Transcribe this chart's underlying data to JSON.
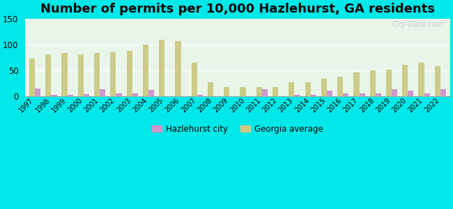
{
  "title": "Number of permits per 10,000 Hazlehurst, GA residents",
  "years": [
    1997,
    1998,
    1999,
    2000,
    2001,
    2002,
    2003,
    2004,
    2005,
    2006,
    2007,
    2008,
    2009,
    2010,
    2011,
    2012,
    2013,
    2014,
    2015,
    2016,
    2017,
    2018,
    2019,
    2020,
    2021,
    2022
  ],
  "hazlehurst": [
    15,
    3,
    3,
    4,
    13,
    5,
    5,
    12,
    0,
    0,
    3,
    0,
    0,
    0,
    13,
    0,
    3,
    3,
    10,
    5,
    5,
    5,
    13,
    10,
    5,
    13
  ],
  "georgia": [
    72,
    81,
    83,
    81,
    83,
    85,
    87,
    99,
    109,
    106,
    65,
    27,
    17,
    17,
    17,
    17,
    26,
    27,
    34,
    38,
    46,
    50,
    51,
    60,
    65,
    57
  ],
  "hazlehurst_color": "#cc99cc",
  "georgia_color": "#cccc88",
  "plot_bg": "#eaf5ea",
  "outer_bg": "#00e8e8",
  "ylim": [
    0,
    150
  ],
  "yticks": [
    0,
    50,
    100,
    150
  ],
  "title_fontsize": 13,
  "legend_hazlehurst": "Hazlehurst city",
  "legend_georgia": "Georgia average"
}
